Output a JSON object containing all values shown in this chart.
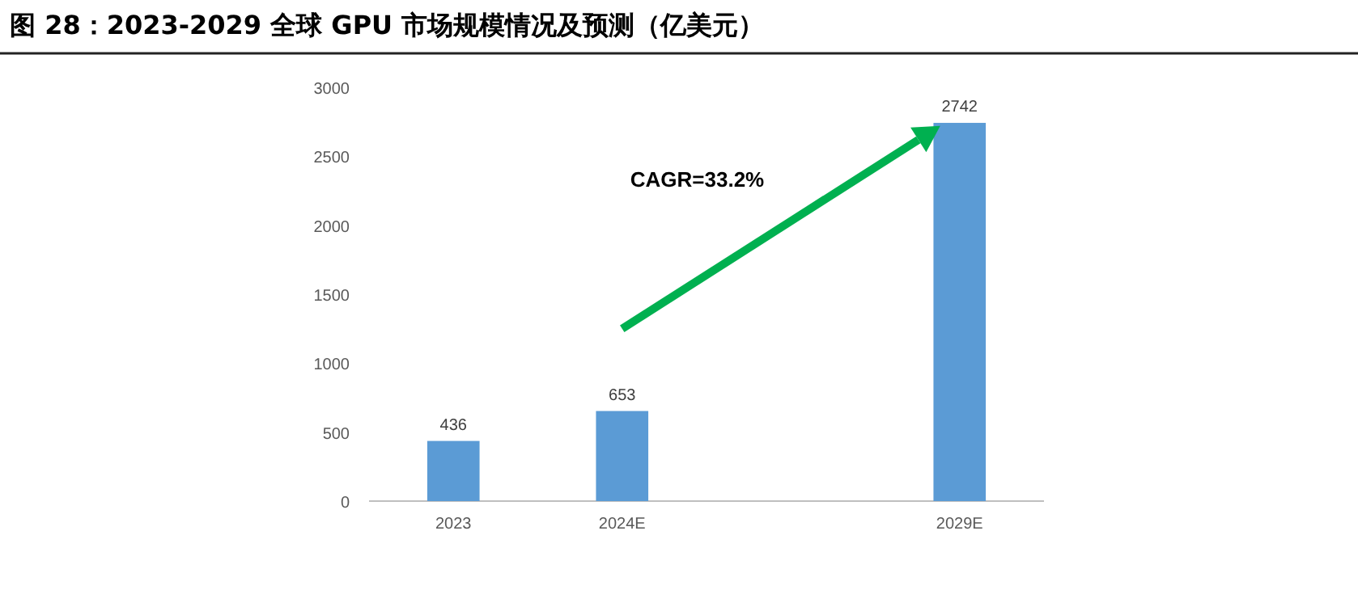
{
  "chart_data": {
    "type": "bar",
    "title": "图 28：2023-2029 全球 GPU 市场规模情况及预测（亿美元）",
    "categories": [
      "2023",
      "2024E",
      null,
      "2029E"
    ],
    "values": [
      436,
      653,
      null,
      2742
    ],
    "color": "#5b9bd5",
    "ylim": [
      0,
      3000
    ],
    "yticks": [
      0,
      500,
      1000,
      1500,
      2000,
      2500,
      3000
    ],
    "data_labels": true,
    "annotations": [
      "CAGR=33.2%"
    ]
  }
}
